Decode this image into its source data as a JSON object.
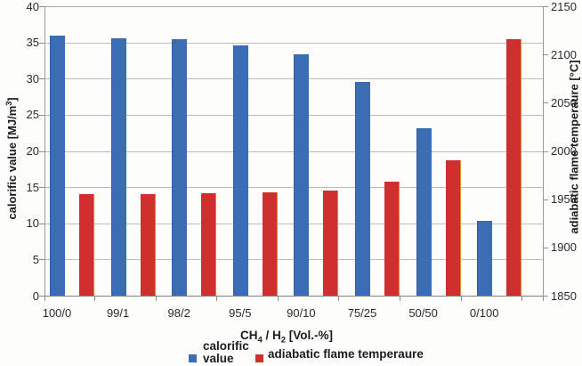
{
  "chart_data": {
    "type": "bar",
    "title": "",
    "categories": [
      "100/0",
      "99/1",
      "98/2",
      "95/5",
      "90/10",
      "75/25",
      "50/50",
      "0/100"
    ],
    "series": [
      {
        "name": "calorific value",
        "axis": "left",
        "color": "#3a6db3",
        "values": [
          35.9,
          35.6,
          35.4,
          34.6,
          33.3,
          29.5,
          23.2,
          10.4
        ]
      },
      {
        "name": "adiabatic flame temperaure",
        "axis": "right",
        "color": "#d02f2f",
        "values": [
          1955,
          1955,
          1956,
          1957,
          1959,
          1968,
          1990,
          2116
        ]
      }
    ],
    "xlabel": "CH4 / H2 [Vol.-%]",
    "left_axis": {
      "label": "calorific value [MJ/m3]",
      "min": 0,
      "max": 40,
      "step": 5,
      "tick_labels": [
        "40",
        "35",
        "30",
        "25",
        "20",
        "15",
        "10",
        "5",
        "0"
      ]
    },
    "right_axis": {
      "label": "adiabatic flame temperaure [°C]",
      "min": 1850,
      "max": 2150,
      "step": 50,
      "tick_labels": [
        "2150",
        "2100",
        "2050",
        "2000",
        "1950",
        "1900",
        "1850"
      ]
    },
    "grid": true,
    "legend_position": "bottom"
  },
  "axis_titles": {
    "left_parts": {
      "main": "calorific value [MJ/m",
      "sup": "3",
      "end": "]"
    },
    "right": "adiabatic flame temperaure [°C]",
    "x_parts": {
      "p1": "CH",
      "sub1": "4",
      "p2": " / H",
      "sub2": "2",
      "p3": " [Vol.-%]"
    }
  },
  "legend": {
    "item1": {
      "label_line1": "calorific",
      "label_line2": "value",
      "color": "#3a6db3"
    },
    "item2": {
      "label": "adiabatic flame temperaure",
      "color": "#d02f2f"
    }
  }
}
